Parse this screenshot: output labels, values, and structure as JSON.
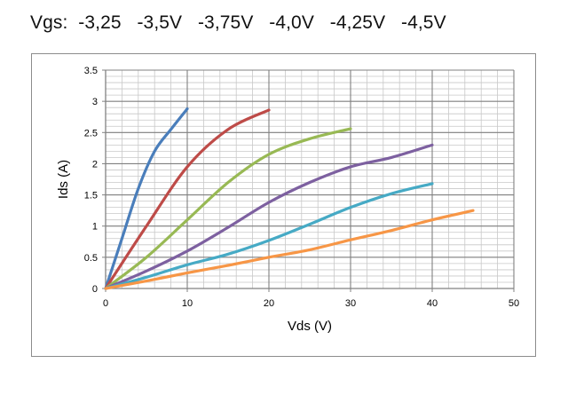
{
  "header": {
    "text": "Vgs:  -3,25   -3,5V   -3,75V   -4,0V   -4,25V   -4,5V"
  },
  "chart_data": {
    "type": "line",
    "title": "",
    "xlabel": "Vds (V)",
    "ylabel": "Ids (A)",
    "xlim": [
      0,
      50
    ],
    "ylim": [
      0,
      3.5
    ],
    "x_ticks": [
      "0",
      "10",
      "20",
      "30",
      "40",
      "50"
    ],
    "y_ticks": [
      "0",
      "0.5",
      "1",
      "1.5",
      "2",
      "2.5",
      "3",
      "3.5"
    ],
    "grid": true,
    "legend": "none",
    "series": [
      {
        "color": "#4a7ebb",
        "x": [
          0,
          2,
          4,
          6,
          8,
          10
        ],
        "y": [
          0,
          0.8,
          1.6,
          2.2,
          2.55,
          2.88
        ]
      },
      {
        "color": "#be4b48",
        "x": [
          0,
          5,
          10,
          15,
          20
        ],
        "y": [
          0,
          1.0,
          1.95,
          2.55,
          2.86
        ]
      },
      {
        "color": "#98b954",
        "x": [
          0,
          5,
          10,
          15,
          20,
          25,
          30
        ],
        "y": [
          0,
          0.5,
          1.1,
          1.7,
          2.15,
          2.4,
          2.56
        ]
      },
      {
        "color": "#7d60a0",
        "x": [
          0,
          5,
          10,
          15,
          20,
          25,
          30,
          35,
          40
        ],
        "y": [
          0,
          0.28,
          0.6,
          0.98,
          1.38,
          1.7,
          1.95,
          2.1,
          2.3
        ]
      },
      {
        "color": "#46aac5",
        "x": [
          0,
          5,
          10,
          15,
          20,
          25,
          30,
          35,
          40
        ],
        "y": [
          0,
          0.18,
          0.38,
          0.55,
          0.77,
          1.03,
          1.3,
          1.52,
          1.68
        ]
      },
      {
        "color": "#f79646",
        "x": [
          0,
          5,
          10,
          15,
          20,
          25,
          30,
          35,
          40,
          45
        ],
        "y": [
          0,
          0.12,
          0.25,
          0.37,
          0.5,
          0.62,
          0.78,
          0.93,
          1.1,
          1.25
        ]
      }
    ]
  }
}
